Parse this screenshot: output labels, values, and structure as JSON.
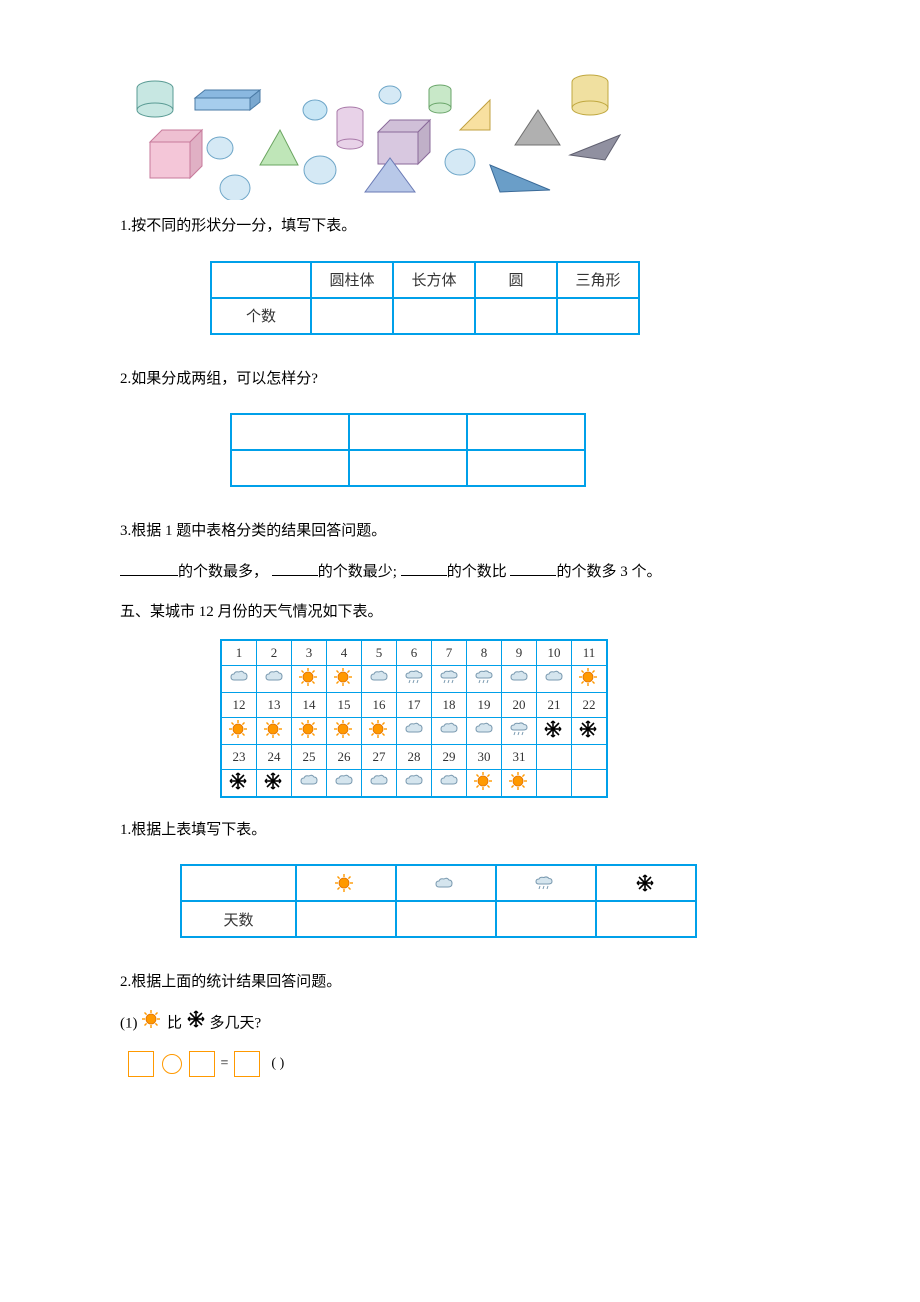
{
  "shapes_illustration": {
    "description": "collection of 3D and 2D shapes",
    "items": [
      {
        "type": "cylinder",
        "fill": "#c7e7e2",
        "stroke": "#5a9b94"
      },
      {
        "type": "cuboid",
        "fill": "#a6cded",
        "stroke": "#4a7aa5"
      },
      {
        "type": "cube",
        "fill": "#f4c6d8",
        "stroke": "#c77a9b"
      },
      {
        "type": "circle",
        "fill": "#d5e9f5",
        "stroke": "#6ea6c8"
      },
      {
        "type": "triangle",
        "fill": "#bfe6b8",
        "stroke": "#6aa560"
      },
      {
        "type": "circle",
        "fill": "#d5e9f5",
        "stroke": "#6ea6c8"
      },
      {
        "type": "circle",
        "fill": "#c8e6f5",
        "stroke": "#6ea6c8"
      },
      {
        "type": "cylinder",
        "fill": "#e8d2e8",
        "stroke": "#a878a8"
      },
      {
        "type": "cuboid",
        "fill": "#d8c8e0",
        "stroke": "#8a6a9a"
      },
      {
        "type": "circle",
        "fill": "#d5e9f5",
        "stroke": "#6ea6c8"
      },
      {
        "type": "triangle",
        "fill": "#b8c8e8",
        "stroke": "#6a7ab5"
      },
      {
        "type": "cylinder",
        "fill": "#c8e8c8",
        "stroke": "#6aa56a"
      },
      {
        "type": "triangle",
        "fill": "#f8e0a0",
        "stroke": "#c0a040"
      },
      {
        "type": "triangle",
        "fill": "#b0b0b0",
        "stroke": "#707070"
      },
      {
        "type": "circle",
        "fill": "#d5e9f5",
        "stroke": "#6ea6c8"
      },
      {
        "type": "triangle",
        "fill": "#6a9ec8",
        "stroke": "#3a6a98"
      },
      {
        "type": "triangle",
        "fill": "#9090a0",
        "stroke": "#606070"
      },
      {
        "type": "cylinder",
        "fill": "#f0e0a0",
        "stroke": "#c0a840"
      }
    ]
  },
  "q1": {
    "text": "1.按不同的形状分一分，填写下表。",
    "table": {
      "headers": [
        "",
        "圆柱体",
        "长方体",
        "圆",
        "三角形"
      ],
      "row_label": "个数"
    }
  },
  "q2": {
    "text": "2.如果分成两组，可以怎样分?"
  },
  "q3": {
    "text": "3.根据 1 题中表格分类的结果回答问题。",
    "parts": [
      "的个数最多，",
      "的个数最少;",
      "的个数比",
      "的个数多 3 个。"
    ]
  },
  "section5": {
    "title": "五、某城市 12 月份的天气情况如下表。"
  },
  "calendar": {
    "days": [
      [
        1,
        2,
        3,
        4,
        5,
        6,
        7,
        8,
        9,
        10,
        11
      ],
      [
        12,
        13,
        14,
        15,
        16,
        17,
        18,
        19,
        20,
        21,
        22
      ],
      [
        23,
        24,
        25,
        26,
        27,
        28,
        29,
        30,
        31,
        "",
        ""
      ]
    ],
    "weather": [
      [
        "cloud",
        "cloud",
        "sun",
        "sun",
        "cloud",
        "rain",
        "rain",
        "rain",
        "cloud",
        "cloud",
        "sun"
      ],
      [
        "sun",
        "sun",
        "sun",
        "sun",
        "sun",
        "cloud",
        "cloud",
        "cloud",
        "rain",
        "snow",
        "snow"
      ],
      [
        "snow",
        "snow",
        "cloud",
        "cloud",
        "cloud",
        "cloud",
        "cloud",
        "sun",
        "sun",
        "",
        ""
      ]
    ],
    "colors": {
      "sun": "#ff9900",
      "cloud": "#9bb8c8",
      "rain": "#9bb8c8",
      "snow": "#000000",
      "border": "#00a0e9"
    }
  },
  "q5_1": {
    "text": "1.根据上表填写下表。",
    "row_label": "天数",
    "cols": [
      "sun",
      "cloud",
      "rain",
      "snow"
    ]
  },
  "q5_2": {
    "text": "2.根据上面的统计结果回答问题。",
    "sub1_prefix": "(1)",
    "sub1_mid": "比",
    "sub1_suffix": "多几天?",
    "unit": "(      )"
  }
}
